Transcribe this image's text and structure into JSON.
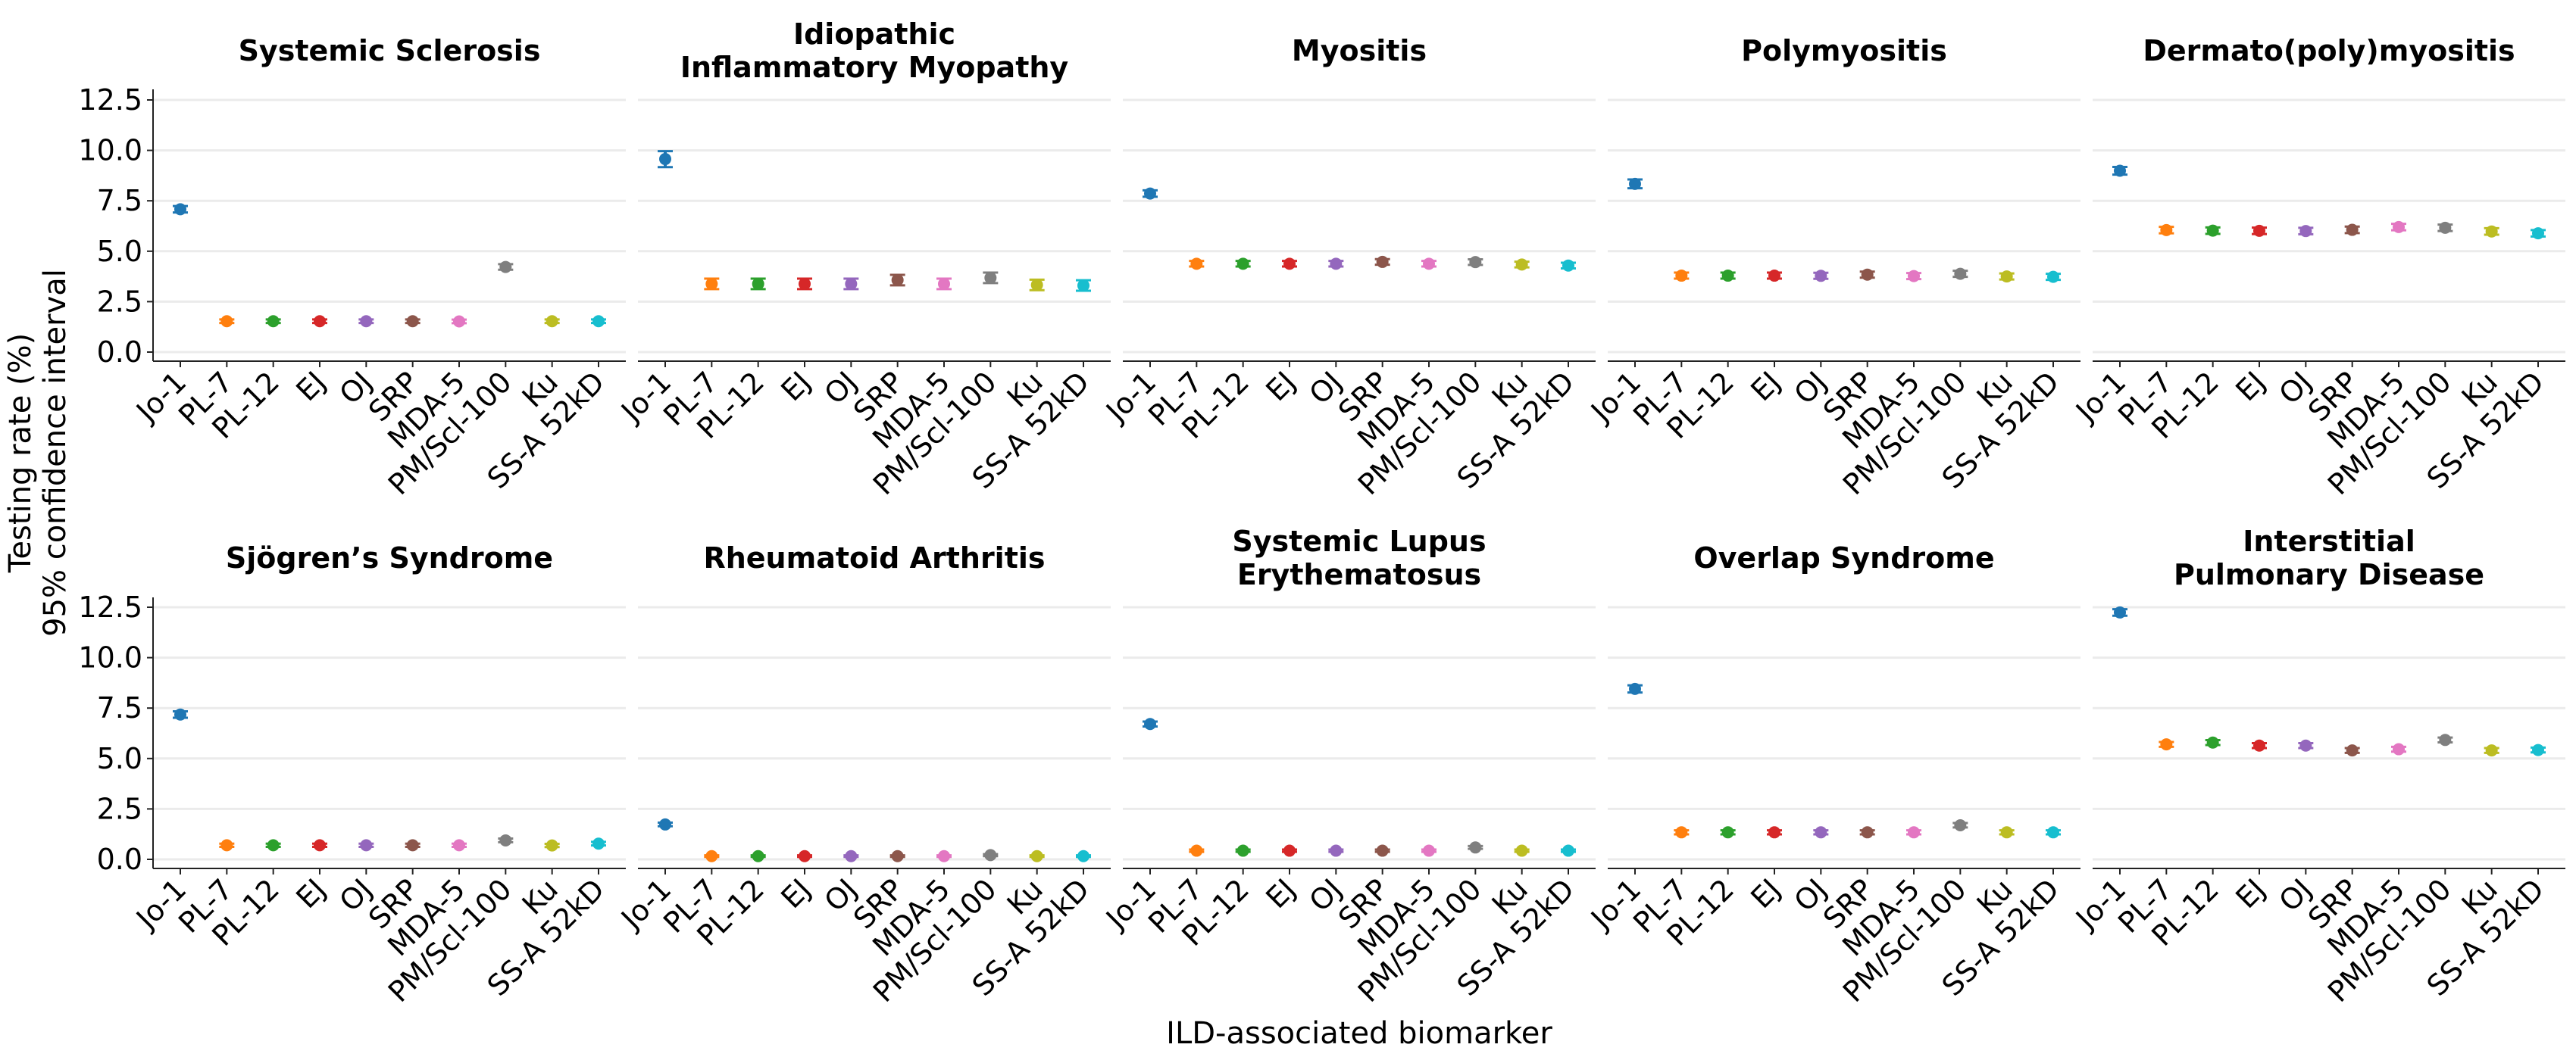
{
  "chart_data": {
    "type": "scatter",
    "subtype": "point-with-errorbars (faceted)",
    "ylabel_lines": [
      "Testing rate (%)",
      "95% confidence interval"
    ],
    "xlabel": "ILD-associated biomarker",
    "ylim": [
      -0.45,
      13.0
    ],
    "yticks": [
      0.0,
      2.5,
      5.0,
      7.5,
      10.0,
      12.5
    ],
    "ytick_labels": [
      "0.0",
      "2.5",
      "5.0",
      "7.5",
      "10.0",
      "12.5"
    ],
    "grid": "horizontal",
    "categories": [
      "Jo-1",
      "PL-7",
      "PL-12",
      "EJ",
      "OJ",
      "SRP",
      "MDA-5",
      "PM/Scl-100",
      "Ku",
      "SS-A 52kD"
    ],
    "colors": [
      "#1f77b4",
      "#ff7f0e",
      "#2ca02c",
      "#d62728",
      "#9467bd",
      "#8c564b",
      "#e377c2",
      "#7f7f7f",
      "#bcbd22",
      "#17becf"
    ],
    "panels": [
      {
        "title": [
          "Systemic Sclerosis"
        ],
        "values": [
          7.08,
          1.53,
          1.53,
          1.53,
          1.53,
          1.53,
          1.52,
          4.22,
          1.53,
          1.53
        ],
        "ci_low": [
          6.92,
          1.44,
          1.44,
          1.44,
          1.44,
          1.44,
          1.43,
          4.08,
          1.44,
          1.44
        ],
        "ci_high": [
          7.24,
          1.62,
          1.62,
          1.62,
          1.62,
          1.62,
          1.61,
          4.36,
          1.62,
          1.62
        ]
      },
      {
        "title": [
          "Idiopathic",
          "Inflammatory Myopathy"
        ],
        "values": [
          9.57,
          3.38,
          3.38,
          3.38,
          3.38,
          3.57,
          3.38,
          3.68,
          3.33,
          3.3
        ],
        "ci_low": [
          9.17,
          3.12,
          3.12,
          3.12,
          3.12,
          3.31,
          3.12,
          3.42,
          3.07,
          3.04
        ],
        "ci_high": [
          9.96,
          3.64,
          3.64,
          3.64,
          3.64,
          3.83,
          3.64,
          3.94,
          3.59,
          3.56
        ]
      },
      {
        "title": [
          "Myositis"
        ],
        "values": [
          7.86,
          4.38,
          4.38,
          4.38,
          4.38,
          4.47,
          4.38,
          4.46,
          4.34,
          4.29
        ],
        "ci_low": [
          7.7,
          4.24,
          4.24,
          4.24,
          4.24,
          4.33,
          4.24,
          4.32,
          4.2,
          4.15
        ],
        "ci_high": [
          8.02,
          4.52,
          4.52,
          4.52,
          4.52,
          4.61,
          4.52,
          4.6,
          4.48,
          4.43
        ]
      },
      {
        "title": [
          "Polymyositis"
        ],
        "values": [
          8.34,
          3.79,
          3.79,
          3.79,
          3.78,
          3.84,
          3.77,
          3.88,
          3.75,
          3.73
        ],
        "ci_low": [
          8.12,
          3.64,
          3.64,
          3.64,
          3.63,
          3.69,
          3.62,
          3.73,
          3.6,
          3.58
        ],
        "ci_high": [
          8.56,
          3.94,
          3.94,
          3.94,
          3.93,
          3.99,
          3.92,
          4.03,
          3.9,
          3.88
        ]
      },
      {
        "title": [
          "Dermato(poly)myositis"
        ],
        "values": [
          8.99,
          6.05,
          6.02,
          6.01,
          6.0,
          6.06,
          6.2,
          6.16,
          5.98,
          5.89
        ],
        "ci_low": [
          8.8,
          5.89,
          5.86,
          5.85,
          5.84,
          5.9,
          6.04,
          6.0,
          5.82,
          5.73
        ],
        "ci_high": [
          9.18,
          6.21,
          6.18,
          6.17,
          6.16,
          6.22,
          6.36,
          6.32,
          6.14,
          6.05
        ]
      },
      {
        "title": [
          "Sjögren’s Syndrome"
        ],
        "values": [
          7.18,
          0.7,
          0.7,
          0.7,
          0.7,
          0.7,
          0.7,
          0.94,
          0.69,
          0.78
        ],
        "ci_low": [
          7.02,
          0.62,
          0.62,
          0.62,
          0.62,
          0.62,
          0.62,
          0.85,
          0.61,
          0.69
        ],
        "ci_high": [
          7.34,
          0.78,
          0.78,
          0.78,
          0.78,
          0.78,
          0.78,
          1.03,
          0.77,
          0.87
        ]
      },
      {
        "title": [
          "Rheumatoid Arthritis"
        ],
        "values": [
          1.73,
          0.16,
          0.16,
          0.16,
          0.16,
          0.16,
          0.16,
          0.21,
          0.16,
          0.16
        ],
        "ci_low": [
          1.64,
          0.12,
          0.12,
          0.12,
          0.12,
          0.12,
          0.12,
          0.16,
          0.12,
          0.12
        ],
        "ci_high": [
          1.82,
          0.2,
          0.2,
          0.2,
          0.2,
          0.2,
          0.2,
          0.26,
          0.2,
          0.2
        ]
      },
      {
        "title": [
          "Systemic Lupus",
          "Erythematosus"
        ],
        "values": [
          6.71,
          0.43,
          0.43,
          0.43,
          0.43,
          0.43,
          0.43,
          0.59,
          0.43,
          0.43
        ],
        "ci_low": [
          6.59,
          0.37,
          0.37,
          0.37,
          0.37,
          0.37,
          0.37,
          0.52,
          0.37,
          0.37
        ],
        "ci_high": [
          6.83,
          0.49,
          0.49,
          0.49,
          0.49,
          0.49,
          0.49,
          0.66,
          0.49,
          0.49
        ]
      },
      {
        "title": [
          "Overlap Syndrome"
        ],
        "values": [
          8.45,
          1.34,
          1.34,
          1.34,
          1.34,
          1.34,
          1.34,
          1.69,
          1.34,
          1.34
        ],
        "ci_low": [
          8.27,
          1.24,
          1.24,
          1.24,
          1.24,
          1.24,
          1.24,
          1.58,
          1.24,
          1.24
        ],
        "ci_high": [
          8.63,
          1.44,
          1.44,
          1.44,
          1.44,
          1.44,
          1.44,
          1.8,
          1.44,
          1.44
        ]
      },
      {
        "title": [
          "Interstitial",
          "Pulmonary Disease"
        ],
        "values": [
          12.24,
          5.7,
          5.79,
          5.64,
          5.64,
          5.4,
          5.46,
          5.92,
          5.4,
          5.42
        ],
        "ci_low": [
          12.08,
          5.58,
          5.67,
          5.52,
          5.52,
          5.28,
          5.34,
          5.8,
          5.28,
          5.3
        ],
        "ci_high": [
          12.4,
          5.82,
          5.91,
          5.76,
          5.76,
          5.52,
          5.58,
          6.04,
          5.52,
          5.54
        ]
      }
    ]
  }
}
